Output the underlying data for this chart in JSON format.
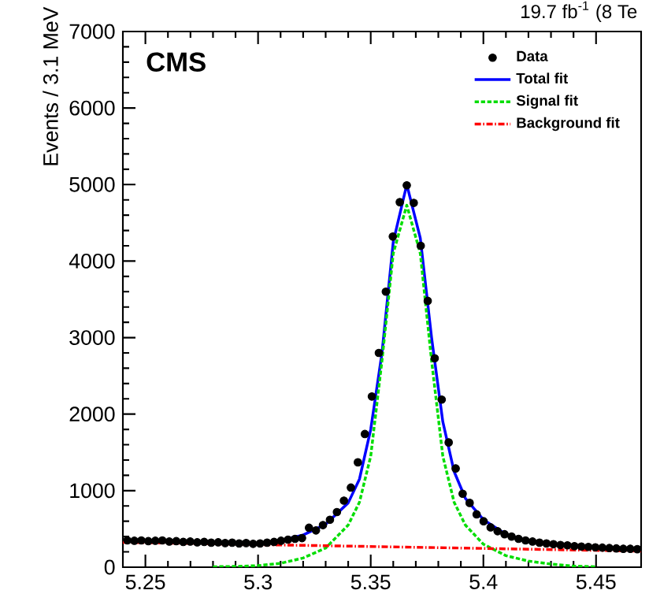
{
  "chart_data": {
    "type": "scatter",
    "title": "19.7 fb$^{-1}$ (8 Te",
    "ylabel": "Events / 3.1 MeV",
    "annotations": [
      "**CMS**"
    ],
    "xlim": [
      5.24,
      5.47
    ],
    "ylim": [
      0,
      7000
    ],
    "xticks": [
      5.25,
      5.3,
      5.35,
      5.4,
      5.45
    ],
    "yticks": [
      0,
      1000,
      2000,
      3000,
      4000,
      5000,
      6000,
      7000
    ],
    "legend": "top right",
    "grid": false,
    "series": [
      {
        "name": "Data",
        "marker": "circle",
        "color": "#000000",
        "x": [
          5.242,
          5.2451,
          5.2482,
          5.2513,
          5.2544,
          5.2575,
          5.2606,
          5.2637,
          5.2668,
          5.2699,
          5.273,
          5.2761,
          5.2792,
          5.2823,
          5.2854,
          5.2885,
          5.2916,
          5.2947,
          5.2978,
          5.3009,
          5.304,
          5.3071,
          5.3102,
          5.3133,
          5.3164,
          5.3195,
          5.3226,
          5.3257,
          5.3288,
          5.3319,
          5.335,
          5.3381,
          5.3412,
          5.3443,
          5.3474,
          5.3505,
          5.3536,
          5.3567,
          5.3598,
          5.3629,
          5.366,
          5.3691,
          5.3722,
          5.3753,
          5.3784,
          5.3815,
          5.3846,
          5.3877,
          5.3908,
          5.3939,
          5.397,
          5.4001,
          5.4032,
          5.4063,
          5.4094,
          5.4125,
          5.4156,
          5.4187,
          5.4218,
          5.4249,
          5.428,
          5.4311,
          5.4342,
          5.4373,
          5.4404,
          5.4435,
          5.4466,
          5.4497,
          5.4528,
          5.4559,
          5.459,
          5.4621,
          5.4652,
          5.4683
        ],
        "values": [
          350,
          345,
          350,
          340,
          345,
          350,
          335,
          340,
          330,
          335,
          325,
          330,
          320,
          325,
          315,
          320,
          310,
          315,
          305,
          310,
          320,
          330,
          345,
          360,
          370,
          380,
          515,
          480,
          550,
          620,
          720,
          870,
          1040,
          1370,
          1740,
          2230,
          2800,
          3600,
          4320,
          4770,
          4990,
          4760,
          4200,
          3480,
          2730,
          2190,
          1630,
          1290,
          960,
          840,
          690,
          600,
          520,
          470,
          430,
          400,
          370,
          350,
          335,
          320,
          310,
          300,
          290,
          285,
          275,
          270,
          265,
          260,
          255,
          250,
          245,
          240,
          240,
          235
        ]
      },
      {
        "name": "Total fit",
        "type": "line",
        "marker": "none",
        "line_style": "solid",
        "color": "#0000ff",
        "x": [
          5.31,
          5.32,
          5.33,
          5.34,
          5.345,
          5.35,
          5.355,
          5.36,
          5.366,
          5.372,
          5.377,
          5.382,
          5.387,
          5.392,
          5.4,
          5.41,
          5.42
        ],
        "values": [
          350,
          420,
          560,
          840,
          1150,
          1800,
          2800,
          4250,
          5000,
          4300,
          3000,
          1900,
          1250,
          900,
          620,
          430,
          340
        ]
      },
      {
        "name": "Signal fit",
        "type": "line",
        "marker": "none",
        "line_style": "dashed",
        "color": "#00dd00",
        "x": [
          5.28,
          5.29,
          5.3,
          5.31,
          5.32,
          5.33,
          5.34,
          5.345,
          5.35,
          5.355,
          5.36,
          5.366,
          5.372,
          5.377,
          5.382,
          5.387,
          5.392,
          5.4,
          5.41,
          5.42,
          5.43,
          5.44,
          5.45
        ],
        "values": [
          5,
          10,
          20,
          50,
          120,
          250,
          550,
          850,
          1450,
          2700,
          4100,
          4730,
          4100,
          2700,
          1450,
          850,
          550,
          300,
          150,
          80,
          40,
          15,
          5
        ]
      },
      {
        "name": "Background fit",
        "type": "line",
        "marker": "none",
        "line_style": "dashdot",
        "color": "#ff0000",
        "x": [
          5.24,
          5.47
        ],
        "values": [
          325,
          210
        ]
      }
    ]
  }
}
